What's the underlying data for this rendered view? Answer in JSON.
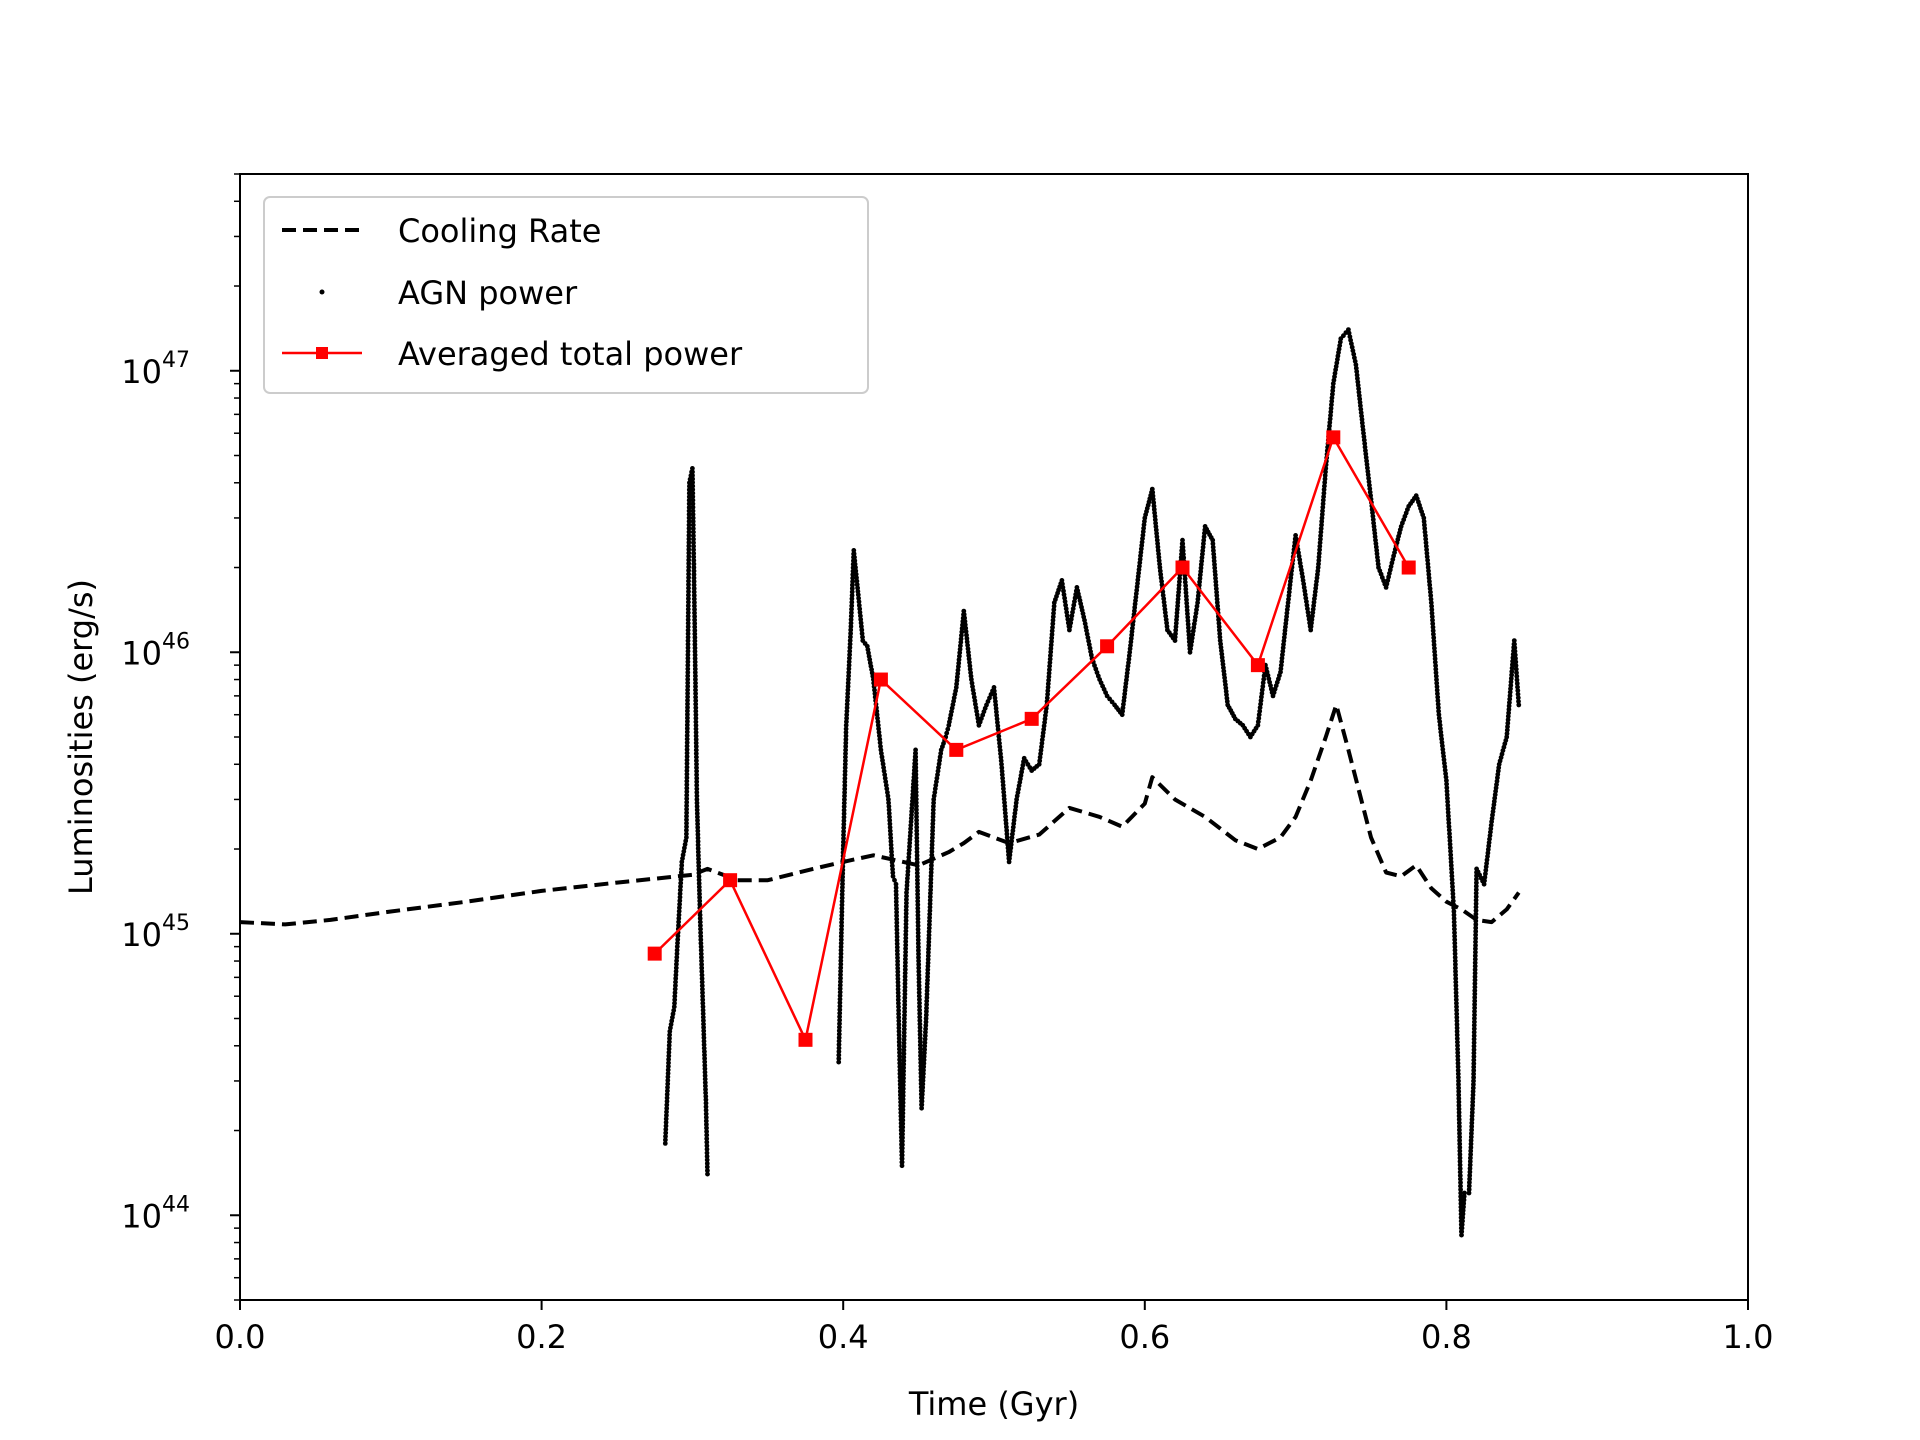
{
  "chart_data": {
    "type": "line",
    "title": "",
    "xlabel": "Time (Gyr)",
    "ylabel": "Luminosities (erg/s)",
    "xlim": [
      0.0,
      1.0
    ],
    "ylim": [
      5e+43,
      5e+47
    ],
    "yscale": "log",
    "grid": false,
    "legend_position": "upper-left",
    "x_ticks": [
      {
        "value": 0.0,
        "label": "0.0"
      },
      {
        "value": 0.2,
        "label": "0.2"
      },
      {
        "value": 0.4,
        "label": "0.4"
      },
      {
        "value": 0.6,
        "label": "0.6"
      },
      {
        "value": 0.8,
        "label": "0.8"
      },
      {
        "value": 1.0,
        "label": "1.0"
      }
    ],
    "y_ticks": [
      {
        "value": 1e+44,
        "base": "10",
        "exponent": "44"
      },
      {
        "value": 1e+45,
        "base": "10",
        "exponent": "45"
      },
      {
        "value": 1e+46,
        "base": "10",
        "exponent": "46"
      },
      {
        "value": 1e+47,
        "base": "10",
        "exponent": "47"
      }
    ],
    "series": [
      {
        "name": "Cooling Rate",
        "style": "dashed",
        "color": "#000000",
        "x": [
          0.0,
          0.03,
          0.06,
          0.1,
          0.15,
          0.2,
          0.25,
          0.3,
          0.31,
          0.33,
          0.35,
          0.38,
          0.4,
          0.42,
          0.45,
          0.47,
          0.48,
          0.49,
          0.51,
          0.53,
          0.55,
          0.57,
          0.585,
          0.6,
          0.605,
          0.62,
          0.64,
          0.66,
          0.675,
          0.69,
          0.7,
          0.71,
          0.72,
          0.727,
          0.735,
          0.75,
          0.76,
          0.77,
          0.78,
          0.79,
          0.8,
          0.81,
          0.82,
          0.83,
          0.84,
          0.848
        ],
        "y": [
          1.1e+45,
          1.08e+45,
          1.12e+45,
          1.2e+45,
          1.3e+45,
          1.42e+45,
          1.52e+45,
          1.62e+45,
          1.7e+45,
          1.55e+45,
          1.55e+45,
          1.7e+45,
          1.8e+45,
          1.9e+45,
          1.75e+45,
          1.95e+45,
          2.1e+45,
          2.3e+45,
          2.1e+45,
          2.25e+45,
          2.8e+45,
          2.6e+45,
          2.4e+45,
          2.9e+45,
          3.6e+45,
          3e+45,
          2.6e+45,
          2.15e+45,
          2e+45,
          2.2e+45,
          2.6e+45,
          3.5e+45,
          5e+45,
          6.5e+45,
          4.5e+45,
          2.2e+45,
          1.65e+45,
          1.6e+45,
          1.75e+45,
          1.45e+45,
          1.3e+45,
          1.22e+45,
          1.12e+45,
          1.1e+45,
          1.22e+45,
          1.4e+45
        ]
      },
      {
        "name": "AGN power",
        "style": "points",
        "color": "#000000",
        "x": [
          0.282,
          0.285,
          0.288,
          0.29,
          0.293,
          0.296,
          0.298,
          0.3,
          0.301,
          0.302,
          0.303,
          0.305,
          0.307,
          0.309,
          0.31,
          0.397,
          0.4,
          0.402,
          0.405,
          0.407,
          0.41,
          0.413,
          0.416,
          0.42,
          0.425,
          0.43,
          0.433,
          0.435,
          0.437,
          0.439,
          0.442,
          0.445,
          0.448,
          0.45,
          0.452,
          0.455,
          0.46,
          0.465,
          0.468,
          0.47,
          0.475,
          0.48,
          0.485,
          0.49,
          0.495,
          0.5,
          0.505,
          0.51,
          0.515,
          0.52,
          0.525,
          0.53,
          0.535,
          0.54,
          0.545,
          0.55,
          0.555,
          0.56,
          0.565,
          0.57,
          0.575,
          0.58,
          0.585,
          0.59,
          0.6,
          0.605,
          0.61,
          0.615,
          0.62,
          0.625,
          0.63,
          0.635,
          0.64,
          0.645,
          0.65,
          0.655,
          0.66,
          0.665,
          0.67,
          0.675,
          0.68,
          0.685,
          0.69,
          0.695,
          0.7,
          0.705,
          0.71,
          0.715,
          0.72,
          0.725,
          0.73,
          0.735,
          0.74,
          0.745,
          0.75,
          0.755,
          0.76,
          0.765,
          0.77,
          0.775,
          0.78,
          0.785,
          0.79,
          0.795,
          0.8,
          0.805,
          0.808,
          0.81,
          0.812,
          0.815,
          0.818,
          0.82,
          0.825,
          0.83,
          0.835,
          0.84,
          0.845,
          0.848
        ],
        "y": [
          1.8e+44,
          4.5e+44,
          5.5e+44,
          9e+44,
          1.8e+45,
          2.2e+45,
          4e+46,
          4.5e+46,
          2e+46,
          8e+45,
          3e+45,
          1.2e+45,
          5.5e+44,
          2.5e+44,
          1.4e+44,
          3.5e+44,
          2e+45,
          5.5e+45,
          1.2e+46,
          2.3e+46,
          1.6e+46,
          1.1e+46,
          1.05e+46,
          8e+45,
          4.5e+45,
          3e+45,
          1.6e+45,
          1.5e+45,
          4.5e+44,
          1.5e+44,
          1.4e+45,
          2.5e+45,
          4.5e+45,
          8e+44,
          2.4e+44,
          5e+44,
          3e+45,
          4.5e+45,
          5e+45,
          5.5e+45,
          7.5e+45,
          1.4e+46,
          8e+45,
          5.5e+45,
          6.5e+45,
          7.5e+45,
          4e+45,
          1.8e+45,
          3e+45,
          4.2e+45,
          3.8e+45,
          4e+45,
          6.5e+45,
          1.5e+46,
          1.8e+46,
          1.2e+46,
          1.7e+46,
          1.3e+46,
          9.5e+45,
          8e+45,
          7e+45,
          6.5e+45,
          6e+45,
          1e+46,
          3e+46,
          3.8e+46,
          2e+46,
          1.2e+46,
          1.1e+46,
          2.5e+46,
          1e+46,
          1.5e+46,
          2.8e+46,
          2.5e+46,
          1.1e+46,
          6.5e+45,
          5.8e+45,
          5.5e+45,
          5e+45,
          5.5e+45,
          9e+45,
          7e+45,
          8.5e+45,
          1.5e+46,
          2.6e+46,
          1.8e+46,
          1.2e+46,
          2e+46,
          4.5e+46,
          9e+46,
          1.3e+47,
          1.4e+47,
          1.05e+47,
          6e+46,
          3.5e+46,
          2e+46,
          1.7e+46,
          2.2e+46,
          2.8e+46,
          3.3e+46,
          3.6e+46,
          3e+46,
          1.5e+46,
          6e+45,
          3.5e+45,
          1.2e+45,
          3e+44,
          8.5e+43,
          1.2e+44,
          1.2e+44,
          3e+44,
          1.7e+45,
          1.5e+45,
          2.5e+45,
          4e+45,
          5e+45,
          1.1e+46,
          6.5e+45
        ]
      },
      {
        "name": "Averaged total power",
        "style": "line-square",
        "color": "#ff0000",
        "x": [
          0.275,
          0.325,
          0.375,
          0.425,
          0.475,
          0.525,
          0.575,
          0.625,
          0.675,
          0.725,
          0.775
        ],
        "y": [
          8.5e+44,
          1.55e+45,
          4.2e+44,
          8e+45,
          4.5e+45,
          5.8e+45,
          1.05e+46,
          2e+46,
          9e+45,
          5.8e+46,
          2e+46
        ]
      }
    ]
  }
}
